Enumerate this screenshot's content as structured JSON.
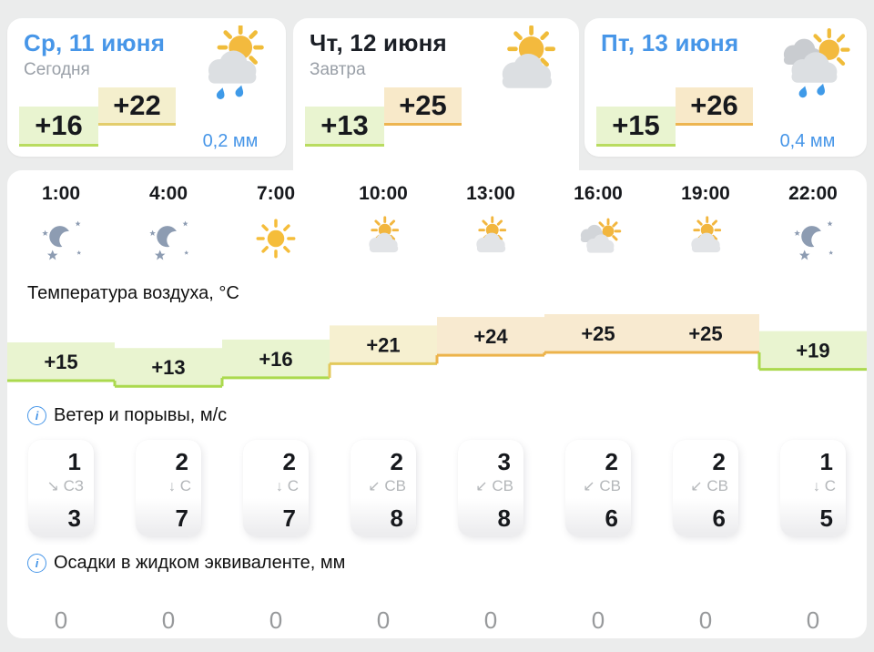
{
  "colors": {
    "page_bg": "#ebecec",
    "panel_bg": "#ffffff",
    "accent_blue": "#4796e8",
    "temp_cool_fill": "#e9f4d0",
    "temp_cool_border": "#abd94e",
    "temp_mild_fill": "#f6f0d0",
    "temp_mild_border": "#e3c95c",
    "temp_warm_fill": "#f8ead0",
    "temp_warm_border": "#ecb34b"
  },
  "day_cards": [
    {
      "title": "Ср, 11 июня",
      "subtitle": "Сегодня",
      "title_style": "link",
      "temp_min": "+16",
      "temp_max": "+22",
      "temp_min_value": 16,
      "temp_max_value": 22,
      "precip": "0,2 мм",
      "icon": "day-sun-cloud-rain"
    },
    {
      "title": "Чт, 12 июня",
      "subtitle": "Завтра",
      "title_style": "current",
      "temp_min": "+13",
      "temp_max": "+25",
      "temp_min_value": 13,
      "temp_max_value": 25,
      "precip": "",
      "icon": "day-sun-cloud"
    },
    {
      "title": "Пт, 13 июня",
      "subtitle": "",
      "title_style": "link",
      "temp_min": "+15",
      "temp_max": "+26",
      "temp_min_value": 15,
      "temp_max_value": 26,
      "precip": "0,4 мм",
      "icon": "day-clouds-sun-rain"
    }
  ],
  "hourly": {
    "columns": [
      {
        "time": "1:00",
        "icon": "moon"
      },
      {
        "time": "4:00",
        "icon": "moon"
      },
      {
        "time": "7:00",
        "icon": "sun"
      },
      {
        "time": "10:00",
        "icon": "sun-cloud"
      },
      {
        "time": "13:00",
        "icon": "sun-cloud"
      },
      {
        "time": "16:00",
        "icon": "clouds-sun"
      },
      {
        "time": "19:00",
        "icon": "sun-cloud"
      },
      {
        "time": "22:00",
        "icon": "moon"
      }
    ],
    "temperature": {
      "label": "Температура воздуха, °C",
      "values": [
        15,
        13,
        16,
        21,
        24,
        25,
        25,
        19
      ],
      "labels": [
        "+15",
        "+13",
        "+16",
        "+21",
        "+24",
        "+25",
        "+25",
        "+19"
      ]
    },
    "wind": {
      "label": "Ветер и порывы, м/с",
      "cards": [
        {
          "speed": "1",
          "arrow": "↘",
          "dir": "СЗ",
          "gust": "3"
        },
        {
          "speed": "2",
          "arrow": "↓",
          "dir": "С",
          "gust": "7"
        },
        {
          "speed": "2",
          "arrow": "↓",
          "dir": "С",
          "gust": "7"
        },
        {
          "speed": "2",
          "arrow": "↙",
          "dir": "СВ",
          "gust": "8"
        },
        {
          "speed": "3",
          "arrow": "↙",
          "dir": "СВ",
          "gust": "8"
        },
        {
          "speed": "2",
          "arrow": "↙",
          "dir": "СВ",
          "gust": "6"
        },
        {
          "speed": "2",
          "arrow": "↙",
          "dir": "СВ",
          "gust": "6"
        },
        {
          "speed": "1",
          "arrow": "↓",
          "dir": "С",
          "gust": "5"
        }
      ]
    },
    "precipitation": {
      "label": "Осадки в жидком эквиваленте, мм",
      "values": [
        "0",
        "0",
        "0",
        "0",
        "0",
        "0",
        "0",
        "0"
      ]
    }
  }
}
